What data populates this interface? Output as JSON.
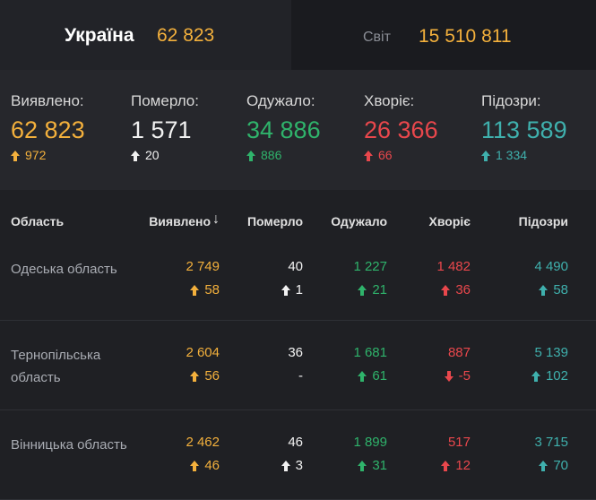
{
  "tabs": [
    {
      "label": "Україна",
      "value": "62 823"
    },
    {
      "label": "Світ",
      "value": "15 510 811"
    }
  ],
  "summary": [
    {
      "label": "Виявлено:",
      "value": "62 823",
      "delta": "972"
    },
    {
      "label": "Померло:",
      "value": "1 571",
      "delta": "20"
    },
    {
      "label": "Одужало:",
      "value": "34 886",
      "delta": "886"
    },
    {
      "label": "Хворіє:",
      "value": "26 366",
      "delta": "66"
    },
    {
      "label": "Підозри:",
      "value": "113 589",
      "delta": "1 334"
    }
  ],
  "table": {
    "columns": [
      "Область",
      "Виявлено",
      "Померло",
      "Одужало",
      "Хворіє",
      "Підозри"
    ],
    "rows": [
      {
        "name": "Одеська область",
        "cells": [
          {
            "value": "2 749",
            "delta": "58"
          },
          {
            "value": "40",
            "delta": "1"
          },
          {
            "value": "1 227",
            "delta": "21"
          },
          {
            "value": "1 482",
            "delta": "36"
          },
          {
            "value": "4 490",
            "delta": "58"
          }
        ]
      },
      {
        "name": "Тернопільська область",
        "cells": [
          {
            "value": "2 604",
            "delta": "56"
          },
          {
            "value": "36",
            "delta": "-"
          },
          {
            "value": "1 681",
            "delta": "61"
          },
          {
            "value": "887",
            "delta": "-5"
          },
          {
            "value": "5 139",
            "delta": "102"
          }
        ]
      },
      {
        "name": "Вінницька область",
        "cells": [
          {
            "value": "2 462",
            "delta": "46"
          },
          {
            "value": "46",
            "delta": "3"
          },
          {
            "value": "1 899",
            "delta": "31"
          },
          {
            "value": "517",
            "delta": "12"
          },
          {
            "value": "3 715",
            "delta": "70"
          }
        ]
      }
    ]
  }
}
